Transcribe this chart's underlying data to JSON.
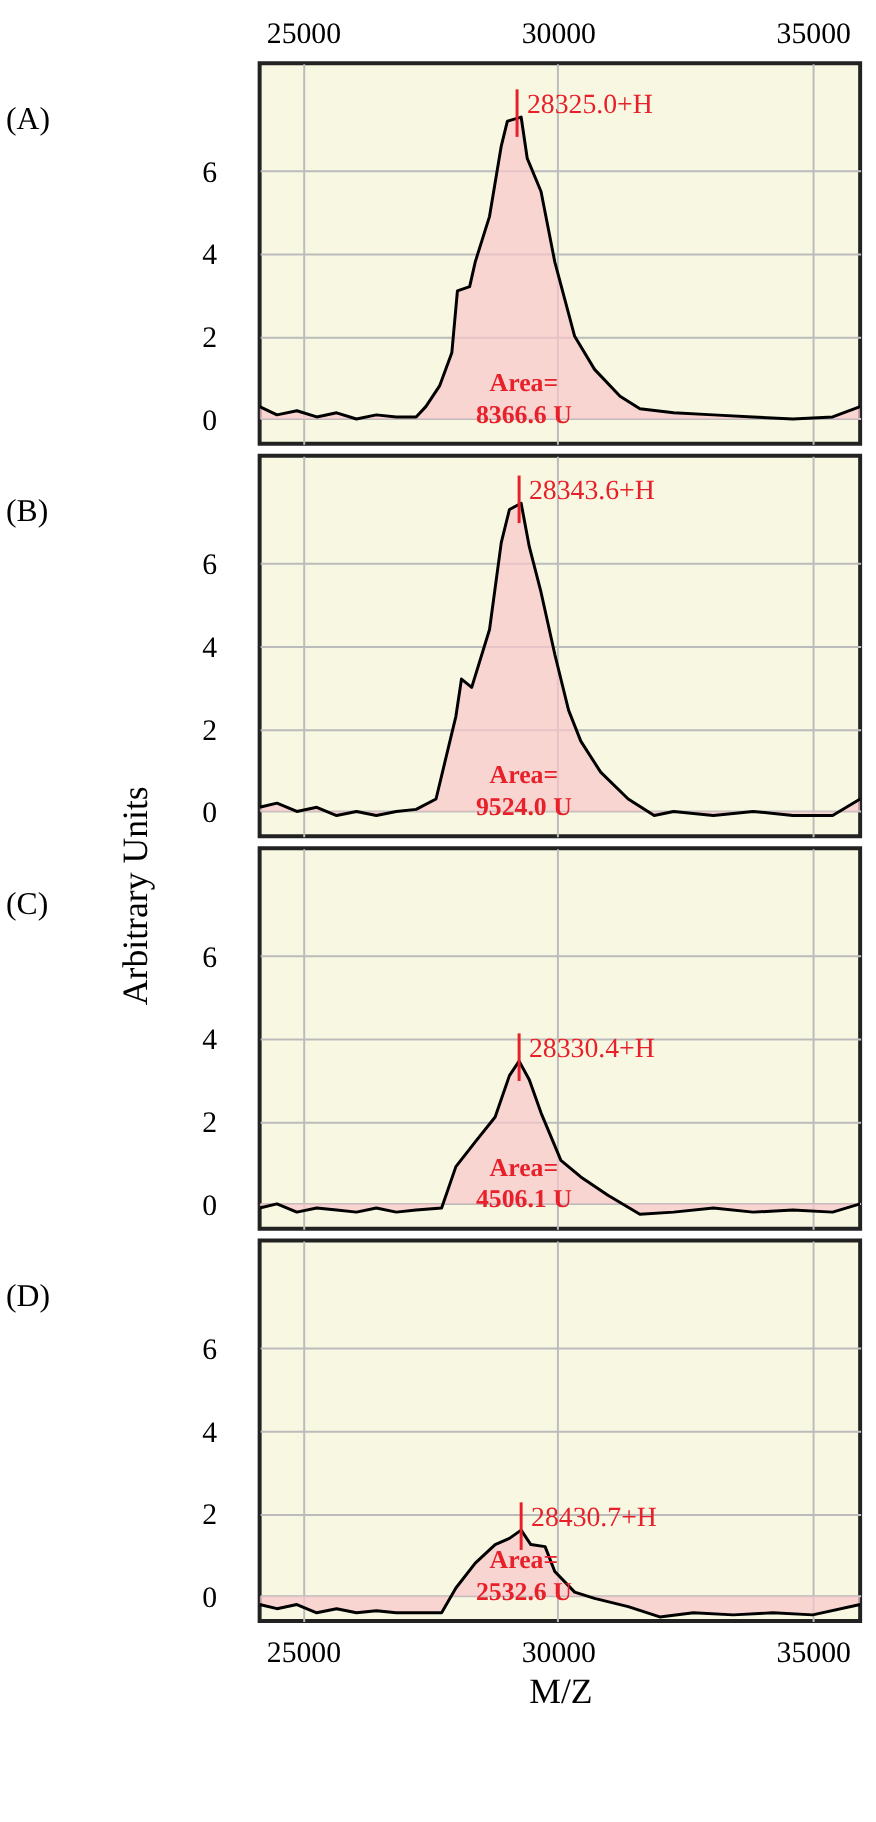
{
  "chart_data": [
    {
      "type": "area",
      "title": "(A)",
      "xlim": [
        24150,
        35930
      ],
      "xticks": [
        25000,
        30000,
        35000
      ],
      "x2lim": [
        24150,
        35930
      ],
      "x2ticks": [
        25000,
        30000,
        35000
      ],
      "tick_labels": "y",
      "ylim": [
        -0.6,
        8.6
      ],
      "yticks": [
        0,
        2,
        4,
        6
      ],
      "grid": true,
      "x": [
        24150,
        24490,
        24880,
        25270,
        25660,
        26050,
        26440,
        26830,
        27220,
        27410,
        27680,
        27920,
        28030,
        28270,
        28380,
        28660,
        28890,
        29010,
        29280,
        29400,
        29670,
        29940,
        30330,
        30720,
        31220,
        31610,
        32270,
        33050,
        33830,
        34610,
        35390,
        35930
      ],
      "series": [
        {
          "color": "#f8c6ca",
          "values": [
            0.3,
            0.1,
            0.2,
            0.05,
            0.15,
            0.0,
            0.1,
            0.05,
            0.05,
            0.3,
            0.8,
            1.6,
            3.1,
            3.2,
            3.8,
            4.9,
            6.6,
            7.2,
            7.3,
            6.3,
            5.5,
            3.8,
            2.0,
            1.2,
            0.55,
            0.25,
            0.15,
            0.1,
            0.05,
            0.0,
            0.05,
            0.3
          ]
        }
      ],
      "annotations": [
        {
          "text": "28325.0+H",
          "x": 29200,
          "y": 7.3
        },
        "Area=\n8366.6 U"
      ]
    },
    {
      "type": "area",
      "title": "(B)",
      "xlim": [
        24150,
        35930
      ],
      "xticks": [
        25000,
        30000,
        35000
      ],
      "tick_labels": "y",
      "ylim": [
        -0.6,
        8.6
      ],
      "yticks": [
        0,
        2,
        4,
        6
      ],
      "grid": true,
      "ylabel": "Arbitrary Units",
      "x": [
        24150,
        24490,
        24880,
        25270,
        25660,
        26050,
        26440,
        26830,
        27220,
        27610,
        28000,
        28110,
        28310,
        28660,
        28890,
        29050,
        29280,
        29440,
        29670,
        29940,
        30210,
        30450,
        30840,
        31380,
        31890,
        32270,
        33050,
        33830,
        34610,
        35390,
        35930
      ],
      "series": [
        {
          "color": "#f8c6ca",
          "values": [
            0.1,
            0.2,
            0.0,
            0.1,
            -0.1,
            0.0,
            -0.1,
            0.0,
            0.05,
            0.3,
            2.3,
            3.2,
            3.0,
            4.4,
            6.5,
            7.3,
            7.45,
            6.4,
            5.3,
            3.8,
            2.45,
            1.7,
            0.95,
            0.3,
            -0.1,
            0.0,
            -0.1,
            0.0,
            -0.1,
            -0.1,
            0.3
          ]
        }
      ],
      "annotations": [
        {
          "text": "28343.6+H",
          "x": 29240,
          "y": 7.45
        },
        "Area=\n9524.0 U"
      ]
    },
    {
      "type": "area",
      "title": "(C)",
      "xlim": [
        24150,
        35930
      ],
      "xticks": [
        25000,
        30000,
        35000
      ],
      "tick_labels": "y",
      "ylim": [
        -0.6,
        8.6
      ],
      "yticks": [
        0,
        2,
        4,
        6
      ],
      "grid": true,
      "x": [
        24150,
        24490,
        24880,
        25270,
        25660,
        26050,
        26440,
        26830,
        27220,
        27720,
        28000,
        28380,
        28770,
        29050,
        29240,
        29440,
        29670,
        30060,
        30450,
        30990,
        31610,
        32270,
        33050,
        33830,
        34610,
        35390,
        35930
      ],
      "series": [
        {
          "color": "#f8c6ca",
          "values": [
            -0.1,
            0.0,
            -0.2,
            -0.1,
            -0.15,
            -0.2,
            -0.1,
            -0.2,
            -0.15,
            -0.1,
            0.9,
            1.5,
            2.1,
            3.1,
            3.45,
            3.0,
            2.2,
            1.05,
            0.65,
            0.2,
            -0.25,
            -0.2,
            -0.1,
            -0.2,
            -0.15,
            -0.2,
            0.0
          ]
        }
      ],
      "annotations": [
        {
          "text": "28330.4+H",
          "x": 29240,
          "y": 3.45
        },
        "Area=\n4506.1 U"
      ]
    },
    {
      "type": "area",
      "title": "(D)",
      "xlim": [
        24150,
        35930
      ],
      "xticks": [
        25000,
        30000,
        35000
      ],
      "ylim": [
        -0.6,
        8.6
      ],
      "yticks": [
        0,
        2,
        4,
        6
      ],
      "grid": true,
      "xlabel": "M/Z",
      "x": [
        24150,
        24490,
        24880,
        25270,
        25660,
        26050,
        26440,
        26830,
        27220,
        27720,
        28000,
        28380,
        28770,
        29050,
        29280,
        29470,
        29750,
        29940,
        30330,
        30720,
        31380,
        32000,
        32660,
        33440,
        34220,
        35000,
        35930
      ],
      "series": [
        {
          "color": "#f8c6ca",
          "values": [
            -0.2,
            -0.3,
            -0.2,
            -0.4,
            -0.3,
            -0.4,
            -0.35,
            -0.4,
            -0.4,
            -0.4,
            0.2,
            0.8,
            1.25,
            1.4,
            1.6,
            1.25,
            1.2,
            0.6,
            0.1,
            -0.05,
            -0.25,
            -0.5,
            -0.4,
            -0.45,
            -0.4,
            -0.45,
            -0.2
          ]
        }
      ],
      "annotations": [
        {
          "text": "28430.7+H",
          "x": 29280,
          "y": 1.6
        },
        "Area=\n2532.6 U"
      ]
    }
  ]
}
